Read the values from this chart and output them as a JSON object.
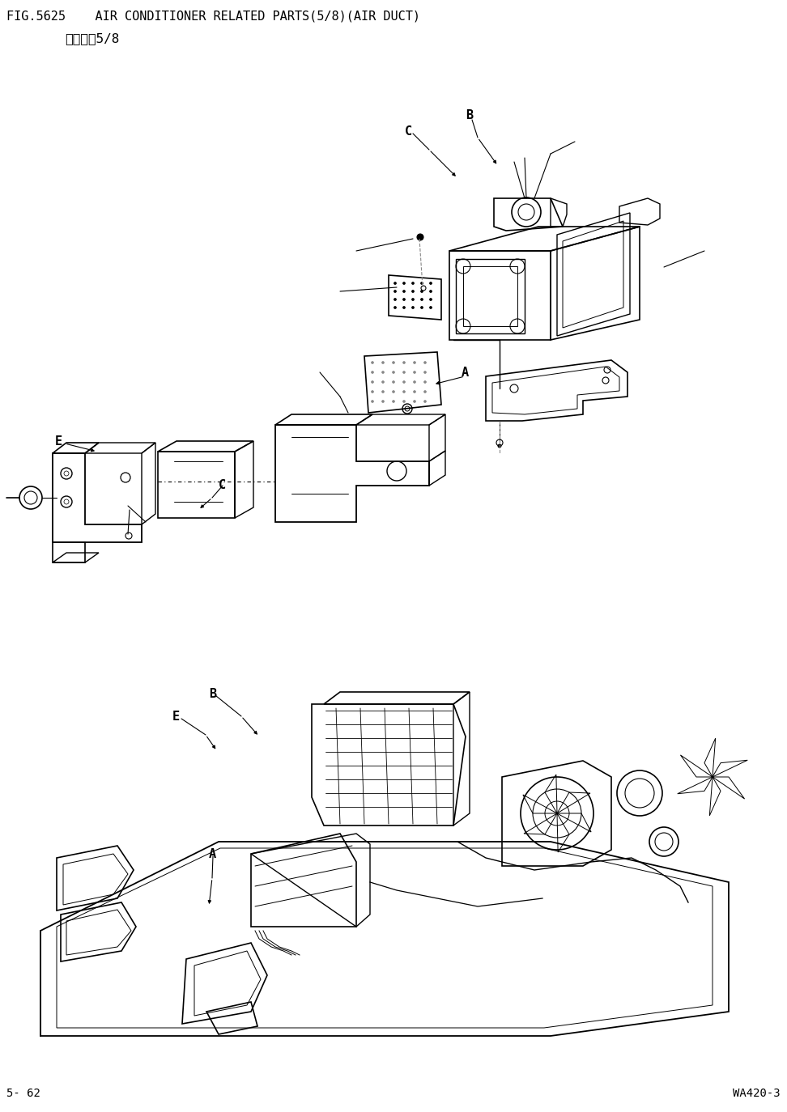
{
  "title_line1": "FIG.5625    AIR CONDITIONER RELATED PARTS(5/8)(AIR DUCT)",
  "title_line2": "空调管路5/8",
  "footer_left": "5- 62",
  "footer_right": "WA420-3",
  "bg_color": "#ffffff",
  "line_color": "#000000",
  "fig_width": 9.72,
  "fig_height": 13.74,
  "dpi": 100
}
